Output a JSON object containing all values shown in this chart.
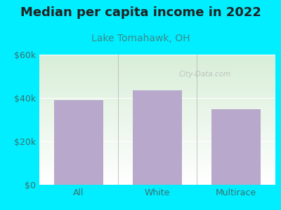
{
  "title": "Median per capita income in 2022",
  "subtitle": "Lake Tomahawk, OH",
  "categories": [
    "All",
    "White",
    "Multirace"
  ],
  "values": [
    39000,
    43500,
    35000
  ],
  "bar_color": "#b8a8cc",
  "title_color": "#222222",
  "subtitle_color": "#3a8a8a",
  "tick_color": "#3a7070",
  "background_outer": "#00eeff",
  "ylim": [
    0,
    60000
  ],
  "yticks": [
    0,
    20000,
    40000,
    60000
  ],
  "ytick_labels": [
    "$0",
    "$20k",
    "$40k",
    "$60k"
  ],
  "watermark": "City-Data.com",
  "title_fontsize": 13,
  "subtitle_fontsize": 10,
  "tick_fontsize": 9,
  "bar_width": 0.62
}
